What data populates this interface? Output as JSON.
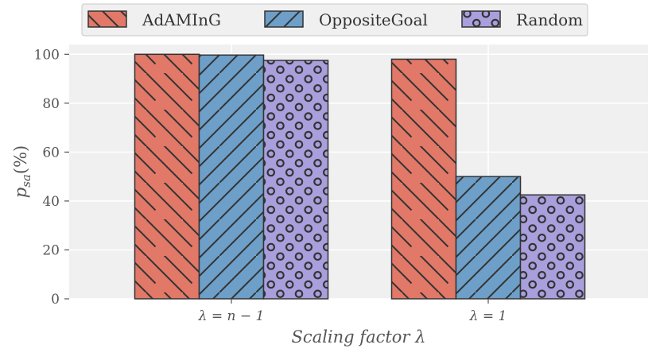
{
  "chart_data": {
    "type": "bar",
    "title": "",
    "xlabel": "Scaling factor λ",
    "ylabel_main": "p",
    "ylabel_sub": "sa",
    "ylabel_suffix": "(%)",
    "categories": [
      "λ = n − 1",
      "λ = 1"
    ],
    "ylim": [
      0,
      104
    ],
    "yticks": [
      0,
      20,
      40,
      60,
      80,
      100
    ],
    "grid": true,
    "legend_position": "top-center",
    "series": [
      {
        "name": "AdAMInG",
        "values": [
          100,
          98
        ],
        "color": "#E17868",
        "hatch": "backslash"
      },
      {
        "name": "OppositeGoal",
        "values": [
          99.7,
          50
        ],
        "color": "#6D9FC8",
        "hatch": "slash"
      },
      {
        "name": "Random",
        "values": [
          97.5,
          42.5
        ],
        "color": "#A89FDC",
        "hatch": "circles"
      }
    ]
  }
}
